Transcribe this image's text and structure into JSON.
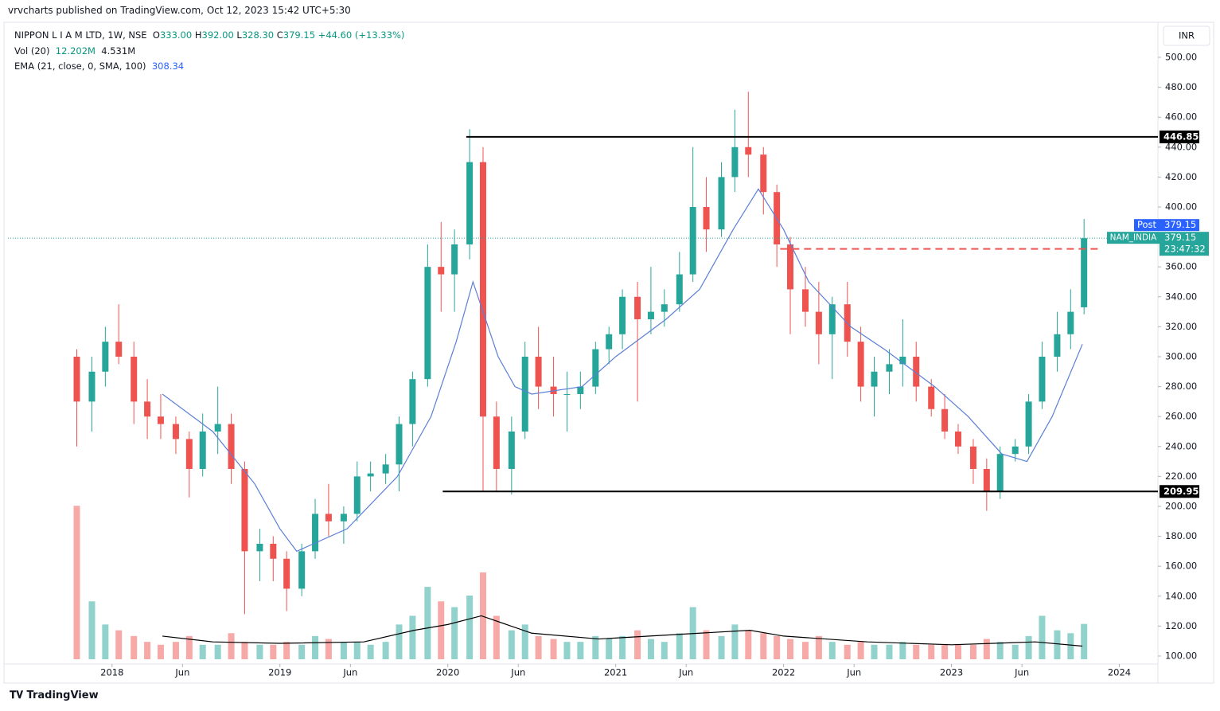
{
  "header": {
    "publisher": "vrvcharts published on TradingView.com, Oct 12, 2023 15:42 UTC+5:30",
    "currency": "INR",
    "footer": "TradingView"
  },
  "legend": {
    "symbol": "NIPPON L I A M LTD, 1W, NSE",
    "o_label": "O",
    "open": "333.00",
    "h_label": "H",
    "high": "392.00",
    "l_label": "L",
    "low": "328.30",
    "c_label": "C",
    "close": "379.15",
    "change": "+44.60 (+13.33%)",
    "vol_label": "Vol (20)",
    "vol": "12.202M",
    "vol_ma": "4.531M",
    "ema_label": "EMA (21, close, 0, SMA, 100)",
    "ema": "308.34"
  },
  "chart_data": {
    "type": "candlestick",
    "x": [
      2017.79,
      2017.88,
      2017.96,
      2018.04,
      2018.13,
      2018.21,
      2018.29,
      2018.38,
      2018.46,
      2018.54,
      2018.63,
      2018.71,
      2018.79,
      2018.88,
      2018.96,
      2019.04,
      2019.13,
      2019.21,
      2019.29,
      2019.38,
      2019.46,
      2019.54,
      2019.63,
      2019.71,
      2019.79,
      2019.88,
      2019.96,
      2020.04,
      2020.13,
      2020.21,
      2020.29,
      2020.38,
      2020.46,
      2020.54,
      2020.63,
      2020.71,
      2020.79,
      2020.88,
      2020.96,
      2021.04,
      2021.13,
      2021.21,
      2021.29,
      2021.38,
      2021.46,
      2021.54,
      2021.63,
      2021.71,
      2021.79,
      2021.88,
      2021.96,
      2022.04,
      2022.13,
      2022.21,
      2022.29,
      2022.38,
      2022.46,
      2022.54,
      2022.63,
      2022.71,
      2022.79,
      2022.88,
      2022.96,
      2023.04,
      2023.13,
      2023.21,
      2023.29,
      2023.38,
      2023.46,
      2023.54,
      2023.63,
      2023.71,
      2023.79
    ],
    "open": [
      300,
      270,
      290,
      310,
      300,
      270,
      260,
      255,
      245,
      225,
      250,
      255,
      225,
      170,
      175,
      165,
      145,
      170,
      195,
      190,
      195,
      220,
      222,
      228,
      255,
      285,
      360,
      355,
      375,
      430,
      260,
      225,
      250,
      300,
      280,
      275,
      275,
      280,
      305,
      315,
      340,
      325,
      330,
      335,
      355,
      400,
      385,
      420,
      440,
      435,
      410,
      375,
      345,
      330,
      315,
      335,
      310,
      280,
      290,
      295,
      300,
      280,
      265,
      250,
      240,
      225,
      210,
      235,
      240,
      270,
      300,
      315,
      333
    ],
    "high": [
      305,
      300,
      320,
      335,
      310,
      285,
      275,
      260,
      250,
      262,
      280,
      262,
      230,
      185,
      180,
      170,
      175,
      205,
      215,
      200,
      230,
      230,
      235,
      260,
      290,
      375,
      390,
      385,
      452,
      440,
      270,
      260,
      310,
      320,
      300,
      290,
      290,
      310,
      320,
      345,
      350,
      360,
      345,
      370,
      440,
      420,
      430,
      465,
      477,
      440,
      415,
      380,
      360,
      350,
      340,
      350,
      320,
      300,
      305,
      325,
      310,
      285,
      275,
      255,
      245,
      232,
      240,
      245,
      275,
      310,
      330,
      345,
      392
    ],
    "low": [
      240,
      250,
      280,
      295,
      255,
      245,
      245,
      235,
      206,
      220,
      235,
      215,
      128,
      150,
      150,
      130,
      140,
      165,
      180,
      175,
      190,
      210,
      215,
      210,
      240,
      280,
      330,
      330,
      365,
      210,
      210,
      208,
      245,
      265,
      260,
      250,
      265,
      275,
      295,
      305,
      270,
      315,
      320,
      330,
      350,
      370,
      380,
      410,
      420,
      395,
      360,
      315,
      320,
      295,
      285,
      300,
      270,
      260,
      275,
      280,
      270,
      260,
      245,
      235,
      215,
      197,
      205,
      230,
      235,
      265,
      290,
      305,
      328.3
    ],
    "close": [
      270,
      290,
      310,
      300,
      270,
      260,
      255,
      245,
      225,
      250,
      255,
      225,
      170,
      175,
      165,
      145,
      170,
      195,
      190,
      195,
      220,
      222,
      228,
      255,
      285,
      360,
      355,
      375,
      430,
      260,
      225,
      250,
      300,
      280,
      275,
      275,
      280,
      305,
      315,
      340,
      325,
      330,
      335,
      355,
      400,
      385,
      420,
      440,
      435,
      410,
      375,
      345,
      330,
      315,
      335,
      310,
      280,
      290,
      295,
      300,
      280,
      265,
      250,
      240,
      225,
      210,
      235,
      240,
      270,
      300,
      315,
      330,
      379.15
    ],
    "volume": [
      53,
      20,
      12,
      10,
      8,
      6,
      5,
      6,
      8,
      5,
      5,
      9,
      6,
      5,
      5,
      6,
      5,
      8,
      7,
      6,
      6,
      5,
      6,
      12,
      15,
      25,
      20,
      18,
      22,
      30,
      15,
      10,
      12,
      8,
      7,
      6,
      6,
      8,
      7,
      8,
      10,
      7,
      6,
      9,
      18,
      10,
      8,
      12,
      10,
      9,
      8,
      7,
      6,
      8,
      6,
      5,
      6,
      5,
      5,
      6,
      5,
      5,
      5,
      5,
      5,
      7,
      6,
      5,
      8,
      15,
      10,
      9,
      12.202
    ],
    "up_color": "#26a69a",
    "down_color": "#ef5350",
    "ema": {
      "color": "#5b7fd6",
      "x": [
        2018.3,
        2018.6,
        2018.85,
        2019.0,
        2019.1,
        2019.4,
        2019.7,
        2019.9,
        2020.05,
        2020.15,
        2020.3,
        2020.4,
        2020.5,
        2020.8,
        2021.0,
        2021.3,
        2021.5,
        2021.7,
        2021.85,
        2022.0,
        2022.15,
        2022.4,
        2022.6,
        2022.9,
        2023.1,
        2023.3,
        2023.45,
        2023.6,
        2023.78
      ],
      "values": [
        275,
        250,
        215,
        185,
        170,
        185,
        220,
        260,
        310,
        350,
        300,
        280,
        275,
        280,
        300,
        325,
        345,
        385,
        412,
        385,
        350,
        320,
        305,
        280,
        260,
        235,
        230,
        260,
        308.34
      ]
    },
    "vol_ma": {
      "color": "#000000",
      "x": [
        2018.3,
        2018.6,
        2019.0,
        2019.5,
        2019.8,
        2020.0,
        2020.2,
        2020.5,
        2020.9,
        2021.5,
        2021.8,
        2022.0,
        2022.5,
        2023.0,
        2023.5,
        2023.78
      ],
      "values": [
        8,
        6,
        5.5,
        6,
        10,
        12,
        15,
        9,
        7,
        9,
        10,
        8,
        6,
        5,
        6,
        4.531
      ]
    },
    "levels": [
      {
        "value": 446.85,
        "from": 2020.11
      },
      {
        "value": 209.95,
        "from": 2019.97
      }
    ],
    "dashed_level": {
      "value": 372,
      "from": 2021.98,
      "color": "#ef5350"
    },
    "last_price": 379.15,
    "post_label": "Post",
    "symbol_label": "NAM_INDIA",
    "countdown": "23:47:32",
    "xlim": [
      2017.38,
      2024.23
    ],
    "ylim": [
      81.9,
      523.4
    ],
    "volume_lim": [
      0,
      55
    ],
    "xticks": [
      2018,
      {
        "value": 2018.42,
        "label": "Jun"
      },
      2019,
      {
        "value": 2019.42,
        "label": "Jun"
      },
      2020,
      {
        "value": 2020.42,
        "label": "Jun"
      },
      2021,
      {
        "value": 2021.42,
        "label": "Jun"
      },
      2022,
      {
        "value": 2022.42,
        "label": "Jun"
      },
      2023,
      {
        "value": 2023.42,
        "label": "Jun"
      },
      2024
    ],
    "yticks": [
      {
        "value": 100,
        "label": "100.00"
      },
      {
        "value": 120,
        "label": "120.00"
      },
      {
        "value": 140,
        "label": "140.00"
      },
      {
        "value": 160,
        "label": "160.00"
      },
      {
        "value": 180,
        "label": "180.00"
      },
      {
        "value": 200,
        "label": "200.00"
      },
      {
        "value": 220,
        "label": "220.00"
      },
      {
        "value": 240,
        "label": "240.00"
      },
      {
        "value": 260,
        "label": "260.00"
      },
      {
        "value": 280,
        "label": "280.00"
      },
      {
        "value": 300,
        "label": "300.00"
      },
      {
        "value": 320,
        "label": "320.00"
      },
      {
        "value": 340,
        "label": "340.00"
      },
      {
        "value": 360,
        "label": "360.00"
      },
      {
        "value": 380,
        "label": "380.00"
      },
      {
        "value": 400,
        "label": "400.00"
      },
      {
        "value": 420,
        "label": "420.00"
      },
      {
        "value": 440,
        "label": "440.00"
      },
      {
        "value": 460,
        "label": "460.00"
      },
      {
        "value": 480,
        "label": "480.00"
      },
      {
        "value": 500,
        "label": "500.00"
      }
    ]
  }
}
